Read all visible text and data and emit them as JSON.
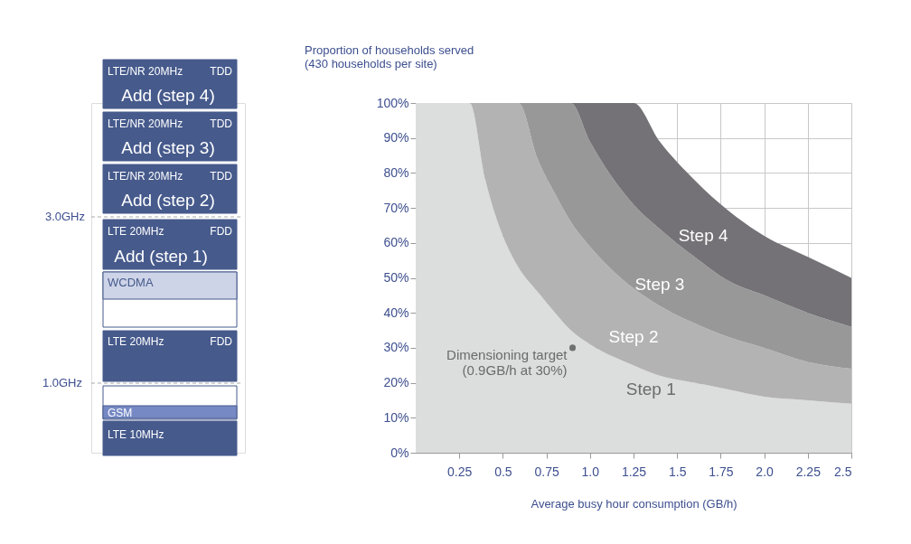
{
  "chart_data": [
    {
      "type": "other",
      "annotations": [
        "LTE/NR 20MHz",
        "TDD",
        "Add (step 4)",
        "LTE/NR 20MHz",
        "TDD",
        "Add (step 3)",
        "LTE/NR 20MHz",
        "TDD",
        "Add (step 2)",
        "3.0GHz",
        "LTE 20MHz",
        "FDD",
        "Add (step 1)",
        "WCDMA",
        "LTE 20MHz",
        "FDD",
        "1.0GHz",
        "GSM",
        "LTE 10MHz"
      ]
    },
    {
      "type": "area",
      "stacked": true,
      "ylabel": "Proportion of households served\n(430 households per site)",
      "xlabel": "Average busy hour consumption (GB/h)",
      "xlim": [
        0,
        2.5
      ],
      "ylim": [
        0,
        100
      ],
      "xticks": [
        0.25,
        0.5,
        0.75,
        {
          "value": 1,
          "label": "1.0"
        },
        1.25,
        1.5,
        1.75,
        {
          "value": 2,
          "label": "2.0"
        },
        2.25,
        2.5
      ],
      "yticks": [
        {
          "value": 0,
          "label": "0%"
        },
        {
          "value": 10,
          "label": "10%"
        },
        {
          "value": 20,
          "label": "20%"
        },
        {
          "value": 30,
          "label": "30%"
        },
        {
          "value": 40,
          "label": "40%"
        },
        {
          "value": 50,
          "label": "50%"
        },
        {
          "value": 60,
          "label": "60%"
        },
        {
          "value": 70,
          "label": "70%"
        },
        {
          "value": 80,
          "label": "80%"
        },
        {
          "value": 90,
          "label": "90%"
        },
        {
          "value": 100,
          "label": "100%"
        }
      ],
      "grid": true,
      "x": [
        0,
        0.31,
        0.4,
        0.5,
        0.59,
        0.7,
        0.8,
        0.89,
        1.0,
        1.25,
        1.4,
        1.6,
        1.8,
        2.0,
        2.25,
        2.5
      ],
      "series": [
        {
          "name": "Step 1",
          "color": "#dcdddd",
          "values": [
            100,
            100,
            78,
            62,
            53,
            46,
            40,
            35,
            31,
            25,
            22,
            20,
            18,
            16,
            15,
            14
          ]
        },
        {
          "name": "Step 2",
          "color": "#b3b3b3",
          "values": [
            0,
            0,
            22,
            38,
            47,
            38,
            34,
            31,
            28,
            22,
            20,
            17,
            15,
            14,
            11,
            10
          ]
        },
        {
          "name": "Step 3",
          "color": "#989898",
          "values": [
            0,
            0,
            0,
            0,
            0,
            16,
            26,
            34,
            30,
            24,
            22,
            19,
            16,
            15,
            14,
            12
          ]
        },
        {
          "name": "Step 4",
          "color": "#747276",
          "values": [
            0,
            0,
            0,
            0,
            0,
            0,
            0,
            0,
            11,
            29,
            25,
            22,
            20,
            17,
            16,
            14
          ]
        },
        {
          "type": "scatter",
          "name": "Dimensioning target\n(0.9GB/h at 30%)",
          "color": "#707070",
          "x": [
            0.9
          ],
          "values": [
            30
          ]
        }
      ]
    }
  ]
}
